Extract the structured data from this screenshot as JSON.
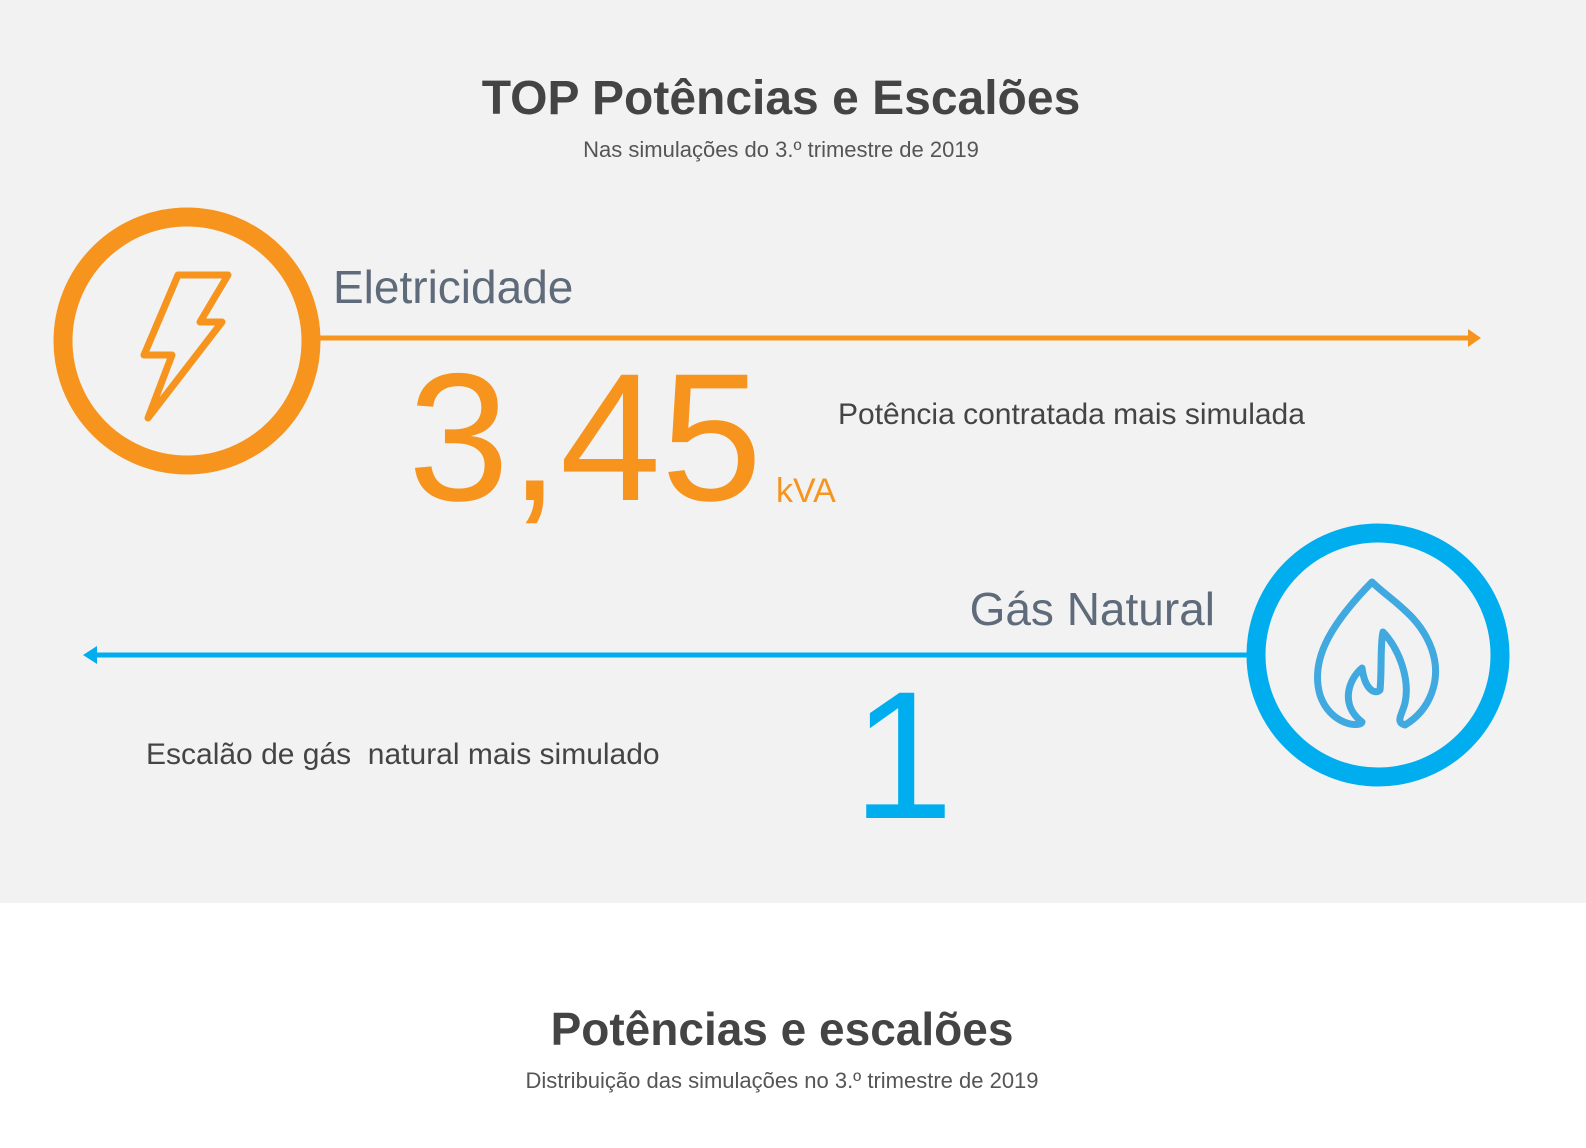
{
  "top": {
    "title": "TOP Potências e Escalões",
    "subtitle": "Nas simulações do 3.º trimestre de 2019",
    "electricity": {
      "label": "Eletricidade",
      "value": "3,45",
      "unit": "kVA",
      "description": "Potência contratada mais simulada"
    },
    "gas": {
      "label": "Gás Natural",
      "value": "1",
      "description": "Escalão de gás  natural mais simulado"
    }
  },
  "section": {
    "title": "Potências e escalões",
    "subtitle": "Distribuição das simulações no 3.º trimestre de 2019"
  }
}
